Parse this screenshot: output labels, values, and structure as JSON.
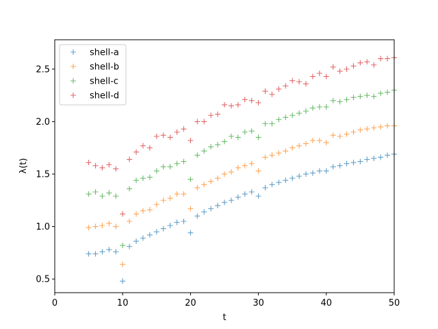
{
  "chart_data": {
    "type": "scatter",
    "marker": "+",
    "xlabel": "t",
    "ylabel": "λ(t)",
    "xlim": [
      0,
      50
    ],
    "ylim": [
      0.37,
      2.78
    ],
    "xticks": [
      0,
      10,
      20,
      30,
      40,
      50
    ],
    "yticks": [
      0.5,
      1.0,
      1.5,
      2.0,
      2.5
    ],
    "xtick_labels": [
      "0",
      "10",
      "20",
      "30",
      "40",
      "50"
    ],
    "ytick_labels": [
      "0.5",
      "1.0",
      "1.5",
      "2.0",
      "2.5"
    ],
    "grid": false,
    "legend_position": "upper-left",
    "x": [
      5,
      6,
      7,
      8,
      9,
      10,
      11,
      12,
      13,
      14,
      15,
      16,
      17,
      18,
      19,
      20,
      21,
      22,
      23,
      24,
      25,
      26,
      27,
      28,
      29,
      30,
      31,
      32,
      33,
      34,
      35,
      36,
      37,
      38,
      39,
      40,
      41,
      42,
      43,
      44,
      45,
      46,
      47,
      48,
      49,
      50
    ],
    "series": [
      {
        "name": "shell-a",
        "color": "#1f77b4",
        "values": [
          0.74,
          0.74,
          0.76,
          0.78,
          0.76,
          0.48,
          0.81,
          0.86,
          0.89,
          0.92,
          0.95,
          0.98,
          1.01,
          1.04,
          1.05,
          0.94,
          1.1,
          1.14,
          1.17,
          1.2,
          1.23,
          1.25,
          1.28,
          1.31,
          1.33,
          1.29,
          1.37,
          1.4,
          1.42,
          1.44,
          1.46,
          1.48,
          1.5,
          1.51,
          1.53,
          1.53,
          1.57,
          1.58,
          1.6,
          1.61,
          1.62,
          1.64,
          1.65,
          1.66,
          1.68,
          1.69
        ]
      },
      {
        "name": "shell-b",
        "color": "#ff7f0e",
        "values": [
          0.99,
          1.0,
          1.01,
          1.03,
          1.0,
          0.64,
          1.05,
          1.12,
          1.15,
          1.16,
          1.21,
          1.25,
          1.27,
          1.31,
          1.31,
          1.17,
          1.37,
          1.4,
          1.43,
          1.46,
          1.5,
          1.52,
          1.56,
          1.58,
          1.6,
          1.53,
          1.66,
          1.68,
          1.7,
          1.72,
          1.75,
          1.77,
          1.79,
          1.82,
          1.82,
          1.8,
          1.87,
          1.86,
          1.88,
          1.9,
          1.92,
          1.93,
          1.94,
          1.95,
          1.96,
          1.96
        ]
      },
      {
        "name": "shell-c",
        "color": "#2ca02c",
        "values": [
          1.31,
          1.33,
          1.29,
          1.32,
          1.29,
          0.82,
          1.36,
          1.44,
          1.46,
          1.47,
          1.53,
          1.57,
          1.57,
          1.6,
          1.62,
          1.45,
          1.68,
          1.72,
          1.76,
          1.78,
          1.81,
          1.86,
          1.85,
          1.9,
          1.91,
          1.85,
          1.98,
          1.98,
          2.02,
          2.04,
          2.06,
          2.08,
          2.1,
          2.13,
          2.14,
          2.14,
          2.2,
          2.19,
          2.21,
          2.23,
          2.24,
          2.25,
          2.24,
          2.27,
          2.28,
          2.3
        ]
      },
      {
        "name": "shell-d",
        "color": "#d62728",
        "values": [
          1.61,
          1.58,
          1.56,
          1.59,
          1.55,
          1.12,
          1.64,
          1.71,
          1.77,
          1.75,
          1.86,
          1.87,
          1.85,
          1.9,
          1.93,
          1.82,
          2.0,
          2.0,
          2.06,
          2.07,
          2.16,
          2.15,
          2.16,
          2.21,
          2.2,
          2.18,
          2.29,
          2.26,
          2.31,
          2.34,
          2.39,
          2.38,
          2.36,
          2.43,
          2.46,
          2.43,
          2.52,
          2.48,
          2.5,
          2.53,
          2.56,
          2.57,
          2.54,
          2.6,
          2.6,
          2.61
        ]
      }
    ]
  }
}
